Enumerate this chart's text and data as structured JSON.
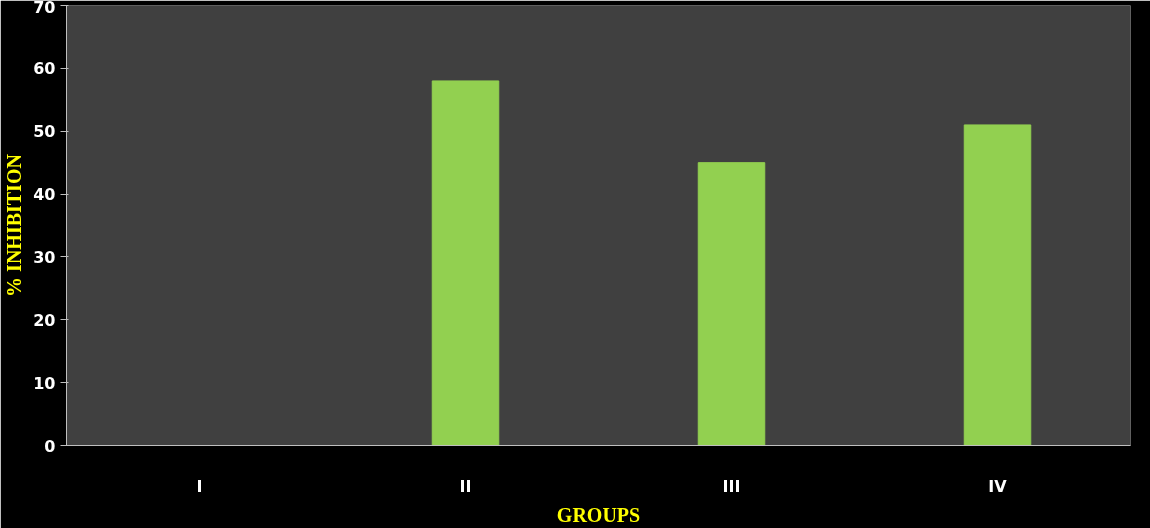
{
  "chart_data": {
    "type": "bar",
    "xlabel": "GROUPS",
    "ylabel": "% INHIBITION",
    "categories": [
      "I",
      "II",
      "III",
      "IV"
    ],
    "values": [
      0,
      58,
      45,
      51
    ],
    "color": "#92d050",
    "ylim": [
      0,
      70
    ],
    "yticks": [
      0,
      10,
      20,
      30,
      40,
      50,
      60,
      70
    ],
    "grid": false
  }
}
